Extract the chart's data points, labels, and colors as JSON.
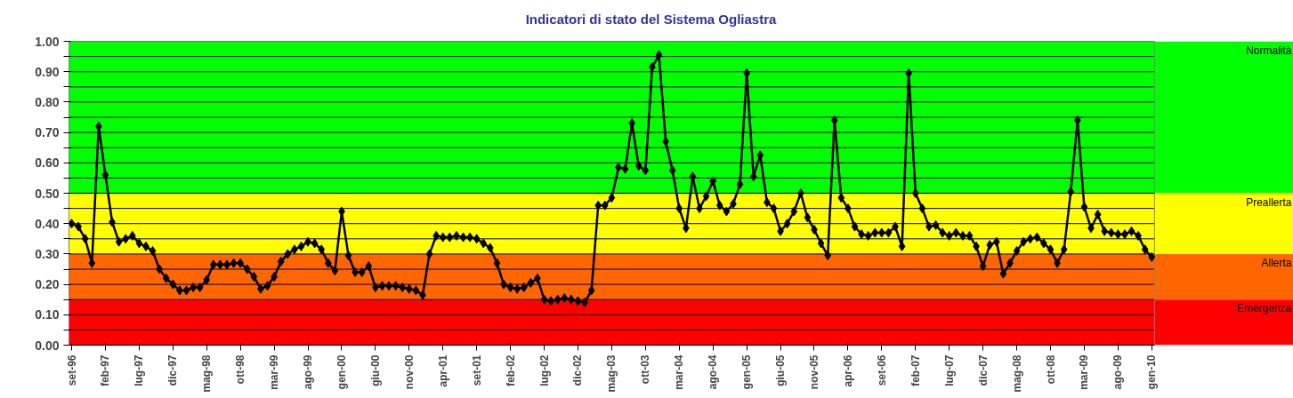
{
  "chart_data": {
    "type": "line",
    "title": "Indicatori di stato del Sistema Ogliastra",
    "categories": [
      "set-96",
      null,
      null,
      null,
      null,
      "feb-97",
      null,
      null,
      null,
      null,
      "lug-97",
      null,
      null,
      null,
      null,
      "dic-97",
      null,
      null,
      null,
      null,
      "mag-98",
      null,
      null,
      null,
      null,
      "ott-98",
      null,
      null,
      null,
      null,
      "mar-99",
      null,
      null,
      null,
      null,
      "ago-99",
      null,
      null,
      null,
      null,
      "gen-00",
      null,
      null,
      null,
      null,
      "giu-00",
      null,
      null,
      null,
      null,
      "nov-00",
      null,
      null,
      null,
      null,
      "apr-01",
      null,
      null,
      null,
      null,
      "set-01",
      null,
      null,
      null,
      null,
      "feb-02",
      null,
      null,
      null,
      null,
      "lug-02",
      null,
      null,
      null,
      null,
      "dic-02",
      null,
      null,
      null,
      null,
      "mag-03",
      null,
      null,
      null,
      null,
      "ott-03",
      null,
      null,
      null,
      null,
      "mar-04",
      null,
      null,
      null,
      null,
      "ago-04",
      null,
      null,
      null,
      null,
      "gen-05",
      null,
      null,
      null,
      null,
      "giu-05",
      null,
      null,
      null,
      null,
      "nov-05",
      null,
      null,
      null,
      null,
      "apr-06",
      null,
      null,
      null,
      null,
      "set-06",
      null,
      null,
      null,
      null,
      "feb-07",
      null,
      null,
      null,
      null,
      "lug-07",
      null,
      null,
      null,
      null,
      "dic-07",
      null,
      null,
      null,
      null,
      "mag-08",
      null,
      null,
      null,
      null,
      "ott-08",
      null,
      null,
      null,
      null,
      "mar-09",
      null,
      null,
      null,
      null,
      "ago-09",
      null,
      null,
      null,
      null,
      "gen-10"
    ],
    "series": [
      {
        "color": "#000000",
        "values": [
          0.4,
          0.39,
          0.35,
          0.27,
          0.72,
          0.56,
          0.405,
          0.34,
          0.35,
          0.36,
          0.335,
          0.325,
          0.31,
          0.25,
          0.22,
          0.2,
          0.18,
          0.18,
          0.19,
          0.19,
          0.215,
          0.265,
          0.265,
          0.265,
          0.27,
          0.27,
          0.25,
          0.225,
          0.185,
          0.195,
          0.225,
          0.275,
          0.3,
          0.315,
          0.325,
          0.34,
          0.335,
          0.315,
          0.27,
          0.245,
          0.44,
          0.295,
          0.24,
          0.24,
          0.26,
          0.19,
          0.195,
          0.195,
          0.195,
          0.19,
          0.185,
          0.18,
          0.165,
          0.3,
          0.36,
          0.355,
          0.355,
          0.36,
          0.355,
          0.355,
          0.35,
          0.335,
          0.32,
          0.27,
          0.2,
          0.19,
          0.185,
          0.19,
          0.205,
          0.22,
          0.15,
          0.145,
          0.15,
          0.155,
          0.15,
          0.145,
          0.14,
          0.18,
          0.46,
          0.46,
          0.485,
          0.585,
          0.58,
          0.73,
          0.59,
          0.575,
          0.915,
          0.955,
          0.67,
          0.575,
          0.45,
          0.385,
          0.555,
          0.45,
          0.49,
          0.54,
          0.46,
          0.44,
          0.465,
          0.53,
          0.895,
          0.555,
          0.625,
          0.47,
          0.45,
          0.375,
          0.4,
          0.44,
          0.5,
          0.42,
          0.38,
          0.335,
          0.295,
          0.74,
          0.485,
          0.45,
          0.39,
          0.365,
          0.36,
          0.37,
          0.37,
          0.37,
          0.39,
          0.325,
          0.895,
          0.5,
          0.45,
          0.39,
          0.395,
          0.37,
          0.36,
          0.37,
          0.36,
          0.36,
          0.325,
          0.26,
          0.33,
          0.34,
          0.235,
          0.27,
          0.31,
          0.34,
          0.35,
          0.355,
          0.335,
          0.315,
          0.27,
          0.315,
          0.505,
          0.74,
          0.455,
          0.385,
          0.43,
          0.375,
          0.37,
          0.365,
          0.365,
          0.375,
          0.36,
          0.315,
          0.29
        ]
      }
    ],
    "ylim": [
      0,
      1
    ],
    "yticks": [
      {
        "value": 0,
        "label": "0.00"
      },
      {
        "value": 0.05,
        "label": null
      },
      {
        "value": 0.1,
        "label": "0.10"
      },
      {
        "value": 0.15,
        "label": null
      },
      {
        "value": 0.2,
        "label": "0.20"
      },
      {
        "value": 0.25,
        "label": null
      },
      {
        "value": 0.3,
        "label": "0.30"
      },
      {
        "value": 0.35,
        "label": null
      },
      {
        "value": 0.4,
        "label": "0.40"
      },
      {
        "value": 0.45,
        "label": null
      },
      {
        "value": 0.5,
        "label": "0.50"
      },
      {
        "value": 0.55,
        "label": null
      },
      {
        "value": 0.6,
        "label": "0.60"
      },
      {
        "value": 0.65,
        "label": null
      },
      {
        "value": 0.7,
        "label": "0.70"
      },
      {
        "value": 0.75,
        "label": null
      },
      {
        "value": 0.8,
        "label": "0.80"
      },
      {
        "value": 0.85,
        "label": null
      },
      {
        "value": 0.9,
        "label": "0.90"
      },
      {
        "value": 0.95,
        "label": null
      },
      {
        "value": 1,
        "label": "1.00"
      }
    ],
    "grid": "y",
    "marker": "diamond",
    "line_style": "solid",
    "bands": [
      {
        "axis": "y",
        "from": 0.5,
        "to": 1,
        "label": "Normalità",
        "color": "#00ff00"
      },
      {
        "axis": "y",
        "from": 0.3,
        "to": 0.5,
        "label": "Preallerta",
        "color": "#ffff00"
      },
      {
        "axis": "y",
        "from": 0.15,
        "to": 0.3,
        "label": "Allerta",
        "color": "#ff6600"
      },
      {
        "axis": "y",
        "from": 0,
        "to": 0.15,
        "label": "Emergenza",
        "color": "#ff0000"
      }
    ]
  }
}
